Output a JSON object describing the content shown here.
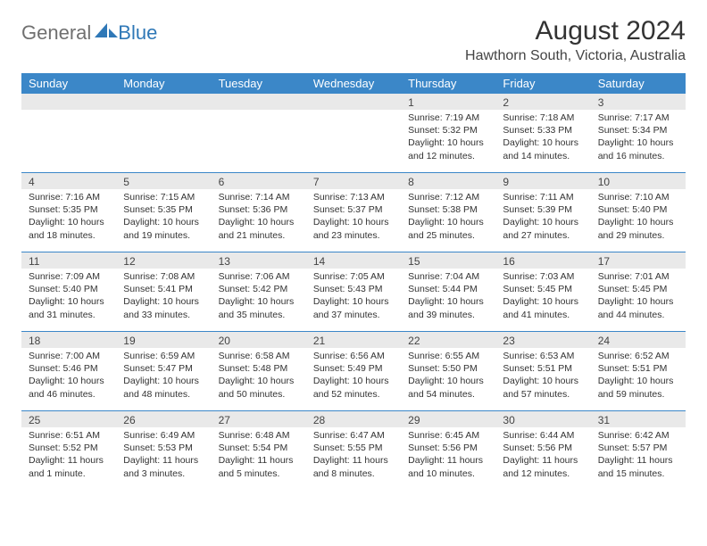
{
  "brand": {
    "part1": "General",
    "part2": "Blue"
  },
  "title": "August 2024",
  "location": "Hawthorn South, Victoria, Australia",
  "colors": {
    "header_bg": "#3b87c8",
    "header_text": "#ffffff",
    "daynum_bg": "#e9e9e9",
    "week_border": "#3b87c8",
    "body_text": "#333333",
    "brand_gray": "#707070",
    "brand_blue": "#2f78b7"
  },
  "day_names": [
    "Sunday",
    "Monday",
    "Tuesday",
    "Wednesday",
    "Thursday",
    "Friday",
    "Saturday"
  ],
  "weeks": [
    [
      {
        "n": "",
        "sr": "",
        "ss": "",
        "dl": ""
      },
      {
        "n": "",
        "sr": "",
        "ss": "",
        "dl": ""
      },
      {
        "n": "",
        "sr": "",
        "ss": "",
        "dl": ""
      },
      {
        "n": "",
        "sr": "",
        "ss": "",
        "dl": ""
      },
      {
        "n": "1",
        "sr": "Sunrise: 7:19 AM",
        "ss": "Sunset: 5:32 PM",
        "dl": "Daylight: 10 hours and 12 minutes."
      },
      {
        "n": "2",
        "sr": "Sunrise: 7:18 AM",
        "ss": "Sunset: 5:33 PM",
        "dl": "Daylight: 10 hours and 14 minutes."
      },
      {
        "n": "3",
        "sr": "Sunrise: 7:17 AM",
        "ss": "Sunset: 5:34 PM",
        "dl": "Daylight: 10 hours and 16 minutes."
      }
    ],
    [
      {
        "n": "4",
        "sr": "Sunrise: 7:16 AM",
        "ss": "Sunset: 5:35 PM",
        "dl": "Daylight: 10 hours and 18 minutes."
      },
      {
        "n": "5",
        "sr": "Sunrise: 7:15 AM",
        "ss": "Sunset: 5:35 PM",
        "dl": "Daylight: 10 hours and 19 minutes."
      },
      {
        "n": "6",
        "sr": "Sunrise: 7:14 AM",
        "ss": "Sunset: 5:36 PM",
        "dl": "Daylight: 10 hours and 21 minutes."
      },
      {
        "n": "7",
        "sr": "Sunrise: 7:13 AM",
        "ss": "Sunset: 5:37 PM",
        "dl": "Daylight: 10 hours and 23 minutes."
      },
      {
        "n": "8",
        "sr": "Sunrise: 7:12 AM",
        "ss": "Sunset: 5:38 PM",
        "dl": "Daylight: 10 hours and 25 minutes."
      },
      {
        "n": "9",
        "sr": "Sunrise: 7:11 AM",
        "ss": "Sunset: 5:39 PM",
        "dl": "Daylight: 10 hours and 27 minutes."
      },
      {
        "n": "10",
        "sr": "Sunrise: 7:10 AM",
        "ss": "Sunset: 5:40 PM",
        "dl": "Daylight: 10 hours and 29 minutes."
      }
    ],
    [
      {
        "n": "11",
        "sr": "Sunrise: 7:09 AM",
        "ss": "Sunset: 5:40 PM",
        "dl": "Daylight: 10 hours and 31 minutes."
      },
      {
        "n": "12",
        "sr": "Sunrise: 7:08 AM",
        "ss": "Sunset: 5:41 PM",
        "dl": "Daylight: 10 hours and 33 minutes."
      },
      {
        "n": "13",
        "sr": "Sunrise: 7:06 AM",
        "ss": "Sunset: 5:42 PM",
        "dl": "Daylight: 10 hours and 35 minutes."
      },
      {
        "n": "14",
        "sr": "Sunrise: 7:05 AM",
        "ss": "Sunset: 5:43 PM",
        "dl": "Daylight: 10 hours and 37 minutes."
      },
      {
        "n": "15",
        "sr": "Sunrise: 7:04 AM",
        "ss": "Sunset: 5:44 PM",
        "dl": "Daylight: 10 hours and 39 minutes."
      },
      {
        "n": "16",
        "sr": "Sunrise: 7:03 AM",
        "ss": "Sunset: 5:45 PM",
        "dl": "Daylight: 10 hours and 41 minutes."
      },
      {
        "n": "17",
        "sr": "Sunrise: 7:01 AM",
        "ss": "Sunset: 5:45 PM",
        "dl": "Daylight: 10 hours and 44 minutes."
      }
    ],
    [
      {
        "n": "18",
        "sr": "Sunrise: 7:00 AM",
        "ss": "Sunset: 5:46 PM",
        "dl": "Daylight: 10 hours and 46 minutes."
      },
      {
        "n": "19",
        "sr": "Sunrise: 6:59 AM",
        "ss": "Sunset: 5:47 PM",
        "dl": "Daylight: 10 hours and 48 minutes."
      },
      {
        "n": "20",
        "sr": "Sunrise: 6:58 AM",
        "ss": "Sunset: 5:48 PM",
        "dl": "Daylight: 10 hours and 50 minutes."
      },
      {
        "n": "21",
        "sr": "Sunrise: 6:56 AM",
        "ss": "Sunset: 5:49 PM",
        "dl": "Daylight: 10 hours and 52 minutes."
      },
      {
        "n": "22",
        "sr": "Sunrise: 6:55 AM",
        "ss": "Sunset: 5:50 PM",
        "dl": "Daylight: 10 hours and 54 minutes."
      },
      {
        "n": "23",
        "sr": "Sunrise: 6:53 AM",
        "ss": "Sunset: 5:51 PM",
        "dl": "Daylight: 10 hours and 57 minutes."
      },
      {
        "n": "24",
        "sr": "Sunrise: 6:52 AM",
        "ss": "Sunset: 5:51 PM",
        "dl": "Daylight: 10 hours and 59 minutes."
      }
    ],
    [
      {
        "n": "25",
        "sr": "Sunrise: 6:51 AM",
        "ss": "Sunset: 5:52 PM",
        "dl": "Daylight: 11 hours and 1 minute."
      },
      {
        "n": "26",
        "sr": "Sunrise: 6:49 AM",
        "ss": "Sunset: 5:53 PM",
        "dl": "Daylight: 11 hours and 3 minutes."
      },
      {
        "n": "27",
        "sr": "Sunrise: 6:48 AM",
        "ss": "Sunset: 5:54 PM",
        "dl": "Daylight: 11 hours and 5 minutes."
      },
      {
        "n": "28",
        "sr": "Sunrise: 6:47 AM",
        "ss": "Sunset: 5:55 PM",
        "dl": "Daylight: 11 hours and 8 minutes."
      },
      {
        "n": "29",
        "sr": "Sunrise: 6:45 AM",
        "ss": "Sunset: 5:56 PM",
        "dl": "Daylight: 11 hours and 10 minutes."
      },
      {
        "n": "30",
        "sr": "Sunrise: 6:44 AM",
        "ss": "Sunset: 5:56 PM",
        "dl": "Daylight: 11 hours and 12 minutes."
      },
      {
        "n": "31",
        "sr": "Sunrise: 6:42 AM",
        "ss": "Sunset: 5:57 PM",
        "dl": "Daylight: 11 hours and 15 minutes."
      }
    ]
  ]
}
